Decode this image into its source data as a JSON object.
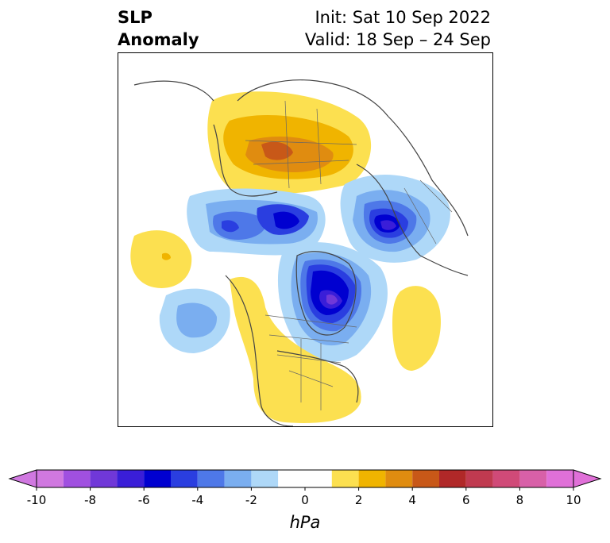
{
  "title": {
    "left_line1": "SLP",
    "left_line2": "Anomaly",
    "right_line1": "Init: Sat 10 Sep 2022",
    "right_line2": "Valid: 18 Sep – 24 Sep"
  },
  "colorbar": {
    "unit_label": "hPa",
    "ticks": [
      "-10",
      "-8",
      "-6",
      "-4",
      "-2",
      "0",
      "2",
      "4",
      "6",
      "8",
      "10"
    ],
    "bins": [
      {
        "from": -10,
        "to": -9,
        "color": "#d078e0"
      },
      {
        "from": -9,
        "to": -8,
        "color": "#a050e0"
      },
      {
        "from": -8,
        "to": -7,
        "color": "#7038d8"
      },
      {
        "from": -7,
        "to": -6,
        "color": "#3a1ed8"
      },
      {
        "from": -6,
        "to": -5,
        "color": "#0000d0"
      },
      {
        "from": -5,
        "to": -4,
        "color": "#2a3ee0"
      },
      {
        "from": -4,
        "to": -3,
        "color": "#4e78e8"
      },
      {
        "from": -3,
        "to": -2,
        "color": "#7aaef0"
      },
      {
        "from": -2,
        "to": -1,
        "color": "#aed8f8"
      },
      {
        "from": -1,
        "to": 1,
        "color": "#ffffff"
      },
      {
        "from": 1,
        "to": 2,
        "color": "#fce050"
      },
      {
        "from": 2,
        "to": 3,
        "color": "#f0b400"
      },
      {
        "from": 3,
        "to": 4,
        "color": "#e08c10"
      },
      {
        "from": 4,
        "to": 5,
        "color": "#c85818"
      },
      {
        "from": 5,
        "to": 6,
        "color": "#b02828"
      },
      {
        "from": 6,
        "to": 7,
        "color": "#c03a50"
      },
      {
        "from": 7,
        "to": 8,
        "color": "#d04a78"
      },
      {
        "from": 8,
        "to": 9,
        "color": "#d860a8"
      },
      {
        "from": 9,
        "to": 10,
        "color": "#e070d8"
      }
    ],
    "extend_low_color": "#d078e0",
    "extend_high_color": "#e070d8"
  }
}
